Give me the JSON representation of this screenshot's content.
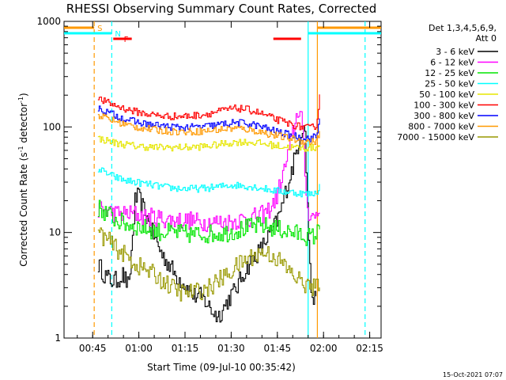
{
  "chart_data": {
    "type": "line",
    "title": "RHESSI Observing Summary Count Rates, Corrected",
    "xlabel": "Start Time (09-Jul-10 00:35:42)",
    "ylabel_main": "Corrected Count Rate (s",
    "ylabel_sup1": "-1",
    "ylabel_mid": " detector",
    "ylabel_sup2": "-1",
    "ylabel_end": ")",
    "x_range_minutes": [
      0,
      103
    ],
    "ylim": [
      1,
      1000
    ],
    "yscale": "log",
    "x_ticks": [
      {
        "label": "00:45",
        "minute": 9.3
      },
      {
        "label": "01:00",
        "minute": 24.3
      },
      {
        "label": "01:15",
        "minute": 39.3
      },
      {
        "label": "01:30",
        "minute": 54.3
      },
      {
        "label": "01:45",
        "minute": 69.3
      },
      {
        "label": "02:00",
        "minute": 84.3
      },
      {
        "label": "02:15",
        "minute": 99.3
      }
    ],
    "y_ticks": [
      {
        "label": "1",
        "value": 1
      },
      {
        "label": "10",
        "value": 10
      },
      {
        "label": "100",
        "value": 100
      },
      {
        "label": "1000",
        "value": 1000
      }
    ],
    "legend": {
      "header1": "Det 1,3,4,5,6,9,",
      "header2": "Att 0",
      "placement": "right"
    },
    "series": [
      {
        "name": "3 - 6 keV",
        "color": "#000000",
        "x": [
          11,
          13,
          15,
          17,
          19,
          21,
          23,
          24,
          26,
          28,
          30,
          32,
          34,
          36,
          38,
          40,
          42,
          44,
          46,
          48,
          50,
          52,
          54,
          56,
          58,
          60,
          62,
          64,
          66,
          68,
          70,
          72,
          74,
          76,
          78,
          80,
          82
        ],
        "y": [
          5,
          4,
          3.5,
          3.5,
          4,
          3,
          20,
          22,
          16,
          11,
          8,
          6,
          5,
          4,
          3.5,
          3,
          2.5,
          2.5,
          2.2,
          1.8,
          1.6,
          2,
          2.5,
          3,
          4,
          5,
          6,
          7,
          9,
          11,
          15,
          25,
          40,
          70,
          120,
          3,
          2
        ]
      },
      {
        "name": "6 - 12 keV",
        "color": "#ff00ff",
        "x": [
          11,
          14,
          17,
          20,
          23,
          26,
          29,
          32,
          35,
          38,
          41,
          44,
          47,
          50,
          53,
          56,
          59,
          62,
          65,
          67,
          69,
          71,
          73,
          75,
          76,
          77,
          79,
          81,
          82,
          83
        ],
        "y": [
          17,
          16,
          15,
          15,
          15,
          14,
          14,
          13.5,
          13,
          13,
          13,
          12.5,
          12.5,
          12.5,
          12.5,
          13,
          13.5,
          14,
          15,
          17,
          22,
          35,
          60,
          110,
          150,
          130,
          16,
          14,
          15,
          16
        ]
      },
      {
        "name": "12 - 25 keV",
        "color": "#00e600",
        "x": [
          11,
          14,
          17,
          20,
          23,
          26,
          29,
          32,
          35,
          38,
          41,
          44,
          47,
          50,
          53,
          56,
          59,
          62,
          65,
          68,
          71,
          74,
          77,
          80,
          82,
          83
        ],
        "y": [
          17,
          15,
          13,
          12,
          11.5,
          11,
          10.5,
          10,
          10,
          9.8,
          9.6,
          9.6,
          9.7,
          9.8,
          10,
          10.5,
          11,
          11.5,
          11.5,
          11,
          10.5,
          10,
          9.5,
          9,
          9.5,
          12
        ]
      },
      {
        "name": "25 - 50 keV",
        "color": "#00ffff",
        "x": [
          11,
          14,
          17,
          20,
          23,
          26,
          29,
          32,
          35,
          38,
          41,
          44,
          47,
          50,
          53,
          56,
          59,
          62,
          65,
          68,
          71,
          74,
          77,
          80,
          82,
          83
        ],
        "y": [
          40,
          36,
          33,
          31,
          30,
          29,
          28,
          27,
          26.5,
          26,
          26,
          26,
          26.5,
          27,
          28,
          28,
          27.5,
          27,
          26,
          25,
          24.5,
          24,
          23.5,
          23,
          24,
          28
        ]
      },
      {
        "name": "50 - 100 keV",
        "color": "#e6e600",
        "x": [
          11,
          14,
          17,
          20,
          23,
          26,
          29,
          32,
          35,
          38,
          41,
          44,
          47,
          50,
          53,
          56,
          59,
          62,
          65,
          68,
          71,
          74,
          77,
          80,
          82,
          83
        ],
        "y": [
          78,
          74,
          70,
          68,
          66,
          65,
          64,
          64,
          64,
          64,
          64,
          65,
          66,
          68,
          70,
          72,
          72,
          71,
          69,
          67,
          65,
          64,
          63,
          63,
          64,
          70
        ]
      },
      {
        "name": "100 - 300 keV",
        "color": "#ff0000",
        "x": [
          11,
          14,
          17,
          20,
          23,
          26,
          29,
          32,
          35,
          38,
          41,
          44,
          47,
          50,
          53,
          56,
          59,
          62,
          65,
          68,
          71,
          74,
          77,
          80,
          82,
          83
        ],
        "y": [
          185,
          170,
          158,
          148,
          140,
          134,
          130,
          127,
          126,
          126,
          127,
          130,
          134,
          140,
          146,
          150,
          147,
          140,
          130,
          120,
          112,
          105,
          100,
          97,
          105,
          200
        ]
      },
      {
        "name": "300 - 800 keV",
        "color": "#0000ff",
        "x": [
          11,
          14,
          17,
          20,
          23,
          26,
          29,
          32,
          35,
          38,
          41,
          44,
          47,
          50,
          53,
          56,
          59,
          62,
          65,
          68,
          71,
          74,
          77,
          80,
          82,
          83
        ],
        "y": [
          150,
          138,
          127,
          118,
          112,
          107,
          104,
          102,
          100,
          99,
          99,
          100,
          102,
          105,
          108,
          110,
          108,
          104,
          98,
          92,
          87,
          83,
          80,
          78,
          82,
          120
        ]
      },
      {
        "name": "800 - 7000 keV",
        "color": "#ff9900",
        "x": [
          11,
          14,
          17,
          20,
          23,
          26,
          29,
          32,
          35,
          38,
          41,
          44,
          47,
          50,
          53,
          56,
          59,
          62,
          65,
          68,
          71,
          74,
          77,
          80,
          82,
          83
        ],
        "y": [
          130,
          120,
          112,
          105,
          100,
          97,
          94,
          92,
          91,
          90,
          90,
          91,
          92,
          94,
          96,
          97,
          95,
          92,
          88,
          84,
          80,
          77,
          74,
          72,
          74,
          90
        ]
      },
      {
        "name": "7000 - 15000 keV",
        "color": "#999900",
        "x": [
          11,
          14,
          17,
          20,
          23,
          26,
          29,
          32,
          35,
          38,
          41,
          44,
          47,
          50,
          53,
          56,
          59,
          62,
          65,
          68,
          71,
          74,
          77,
          80,
          82,
          83
        ],
        "y": [
          10,
          8.5,
          7,
          6,
          5,
          4.5,
          4,
          3.5,
          3,
          2.7,
          2.7,
          2.8,
          3,
          3.5,
          4,
          4.8,
          5.5,
          6.2,
          6.5,
          6,
          5,
          4,
          3.4,
          3,
          3,
          3.5
        ]
      }
    ],
    "vertical_lines": [
      {
        "minute": 9.8,
        "color": "#ff9900",
        "style": "dashed"
      },
      {
        "minute": 15.5,
        "color": "#00ffff",
        "style": "dashed"
      },
      {
        "minute": 79.3,
        "color": "#00ffff",
        "style": "solid"
      },
      {
        "minute": 82.3,
        "color": "#ff9900",
        "style": "solid"
      },
      {
        "minute": 97.8,
        "color": "#00ffff",
        "style": "dashed"
      }
    ],
    "flags": [
      {
        "label": "S",
        "color": "#ff9900",
        "segments": [
          [
            0,
            9.8
          ],
          [
            82.3,
            103
          ]
        ],
        "level": 1
      },
      {
        "label": "N",
        "color": "#00ffff",
        "segments": [
          [
            0,
            15.5
          ],
          [
            79.3,
            103
          ]
        ],
        "level": 2
      },
      {
        "label": "F",
        "color": "#ff0000",
        "segments": [
          [
            16,
            22
          ],
          [
            68,
            77
          ]
        ],
        "level": 3
      }
    ]
  },
  "stamp": "15-Oct-2021 07:07"
}
